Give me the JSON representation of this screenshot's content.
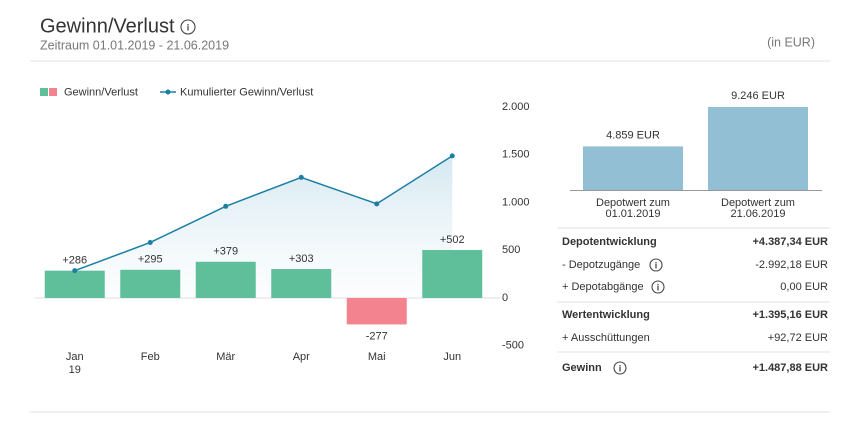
{
  "header": {
    "title": "Gewinn/Verlust",
    "period": "Zeitraum 01.01.2019 - 21.06.2019",
    "unit": "(in EUR)"
  },
  "chart_data": [
    {
      "type": "bar",
      "categories": [
        "Jan",
        "Feb",
        "Mär",
        "Apr",
        "Mai",
        "Jun"
      ],
      "year": "19",
      "series": [
        {
          "name": "Gewinn/Verlust",
          "type": "bar",
          "color": "#5fbf9b",
          "negative_color": "#f2838f",
          "values": [
            286,
            295,
            379,
            303,
            -277,
            502
          ],
          "value_labels": [
            "+286",
            "+295",
            "+379",
            "+303",
            "-277",
            "+502"
          ]
        },
        {
          "name": "Kumulierter Gewinn/Verlust",
          "type": "line",
          "color": "#1b7fa3",
          "values": [
            286,
            581,
            960,
            1263,
            986,
            1488
          ]
        }
      ],
      "ylim": [
        -500,
        2000
      ],
      "yticks": [
        {
          "value": 2000,
          "label": "2.000"
        },
        {
          "value": 1500,
          "label": "1.500"
        },
        {
          "value": 1000,
          "label": "1.000"
        },
        500,
        0,
        -500
      ],
      "grid": false,
      "legend": "top-left"
    },
    {
      "type": "bar",
      "categories": [
        [
          "Depotwert zum",
          "01.01.2019"
        ],
        [
          "Depotwert zum",
          "21.06.2019"
        ]
      ],
      "values": [
        4859,
        9246
      ],
      "value_labels": [
        "4.859 EUR",
        "9.246 EUR"
      ],
      "color": "#92bfd3"
    }
  ],
  "table": {
    "rows": [
      [
        "Depotentwicklung",
        "+4.387,34 EUR"
      ],
      [
        "- Depotzugänge",
        "-2.992,18 EUR"
      ],
      [
        "+ Depotabgänge",
        "0,00 EUR"
      ],
      [
        "Wertentwicklung",
        "+1.395,16 EUR"
      ],
      [
        "+ Ausschüttungen",
        "+92,72 EUR"
      ],
      [
        "Gewinn",
        "+1.487,88 EUR"
      ]
    ]
  }
}
